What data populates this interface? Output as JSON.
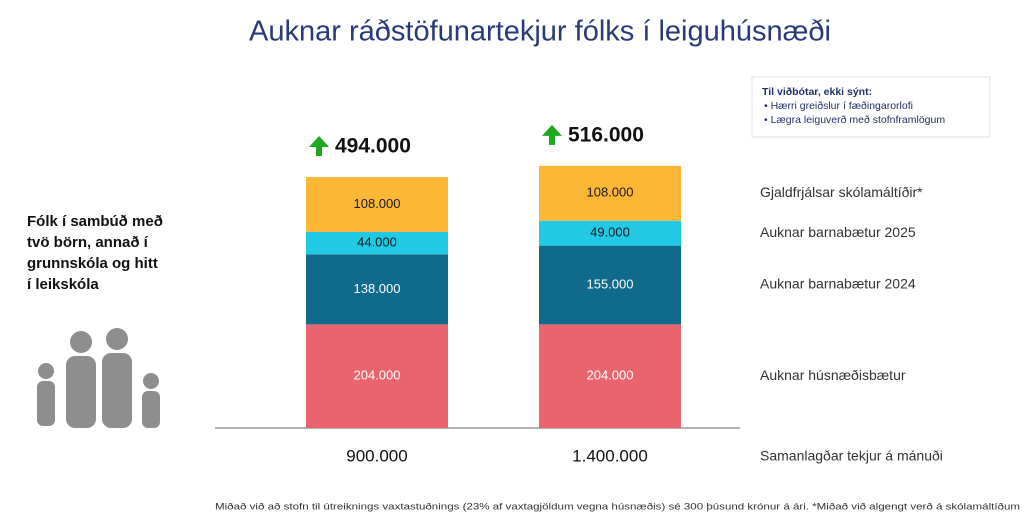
{
  "chart_data": {
    "type": "stacked_bar",
    "title": "Auknar ráðstöfunartekjur fólks í leiguhúsnæði",
    "group_label": [
      "Fólk í sambúð með",
      "tvö börn, annað í",
      "grunnskóla og hitt",
      "í leikskóla"
    ],
    "note": {
      "title": "Til viðbótar, ekki sýnt:",
      "items": [
        "• Hærri greiðslur í fæðingarorlofi",
        "• Lægra leiguverð með stofnframlögum"
      ]
    },
    "categories": [
      "900.000",
      "1.400.000"
    ],
    "x_label": "Samanlagðar tekjur á mánuði",
    "series": [
      {
        "name": "Auknar húsnæðisbætur",
        "color": "#e9646f",
        "label_color": "#ffffff",
        "values": [
          204000,
          204000
        ],
        "value_labels": [
          "204.000",
          "204.000"
        ]
      },
      {
        "name": "Auknar barnabætur 2024",
        "color": "#0f6a8b",
        "label_color": "#ffffff",
        "values": [
          138000,
          155000
        ],
        "value_labels": [
          "138.000",
          "155.000"
        ]
      },
      {
        "name": "Auknar barnabætur 2025",
        "color": "#22c9e4",
        "label_color": "#1a1a1a",
        "values": [
          44000,
          49000
        ],
        "value_labels": [
          "44.000",
          "49.000"
        ]
      },
      {
        "name": "Gjaldfrjálsar skólamáltíðir*",
        "color": "#fbb735",
        "label_color": "#1a1a1a",
        "values": [
          108000,
          108000
        ],
        "value_labels": [
          "108.000",
          "108.000"
        ]
      }
    ],
    "totals": {
      "values": [
        494000,
        516000
      ],
      "value_labels": [
        "494.000",
        "516.000"
      ],
      "color": "#1ea81e"
    },
    "footnote": "Miðað við að stofn til útreiknings vaxtastuðnings (23% af vaxtagjöldum vegna húsnæðis) sé 300 þúsund krónur á ári. *Miðað við algengt verð á skólamáltíðum"
  }
}
